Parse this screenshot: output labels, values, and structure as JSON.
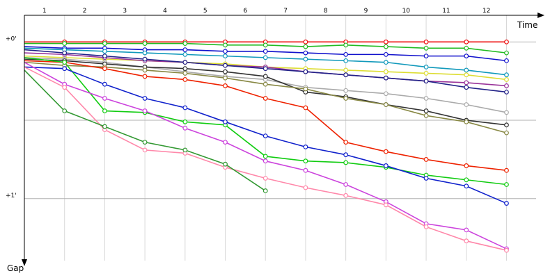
{
  "chart_data": {
    "type": "line",
    "x_title": "Time",
    "y_title": "Gap",
    "lap_labels": [
      "1",
      "2",
      "3",
      "4",
      "5",
      "6",
      "7",
      "8",
      "9",
      "10",
      "11",
      "12"
    ],
    "x": [
      0,
      1,
      2,
      3,
      4,
      5,
      6,
      7,
      8,
      9,
      10,
      11,
      12
    ],
    "xlim": [
      0,
      12.91
    ],
    "x_grid": [
      1,
      2,
      3,
      4,
      5,
      6,
      7,
      8,
      9,
      10,
      11,
      12
    ],
    "ylim": [
      -0.17,
      1.44
    ],
    "yticks": [
      {
        "value": 0,
        "label": "+0'"
      },
      {
        "value": 0.5,
        "label": null
      },
      {
        "value": 1,
        "label": "+1'"
      }
    ],
    "grid": true,
    "series": [
      {
        "color": "#ee1111",
        "values": [
          0,
          0,
          0,
          0,
          0,
          0,
          0,
          0,
          0,
          0,
          0,
          0,
          0
        ]
      },
      {
        "color": "#22bb22",
        "values": [
          0.01,
          0.01,
          0.01,
          0.01,
          0.01,
          0.02,
          0.02,
          0.03,
          0.02,
          0.03,
          0.04,
          0.04,
          0.07
        ]
      },
      {
        "color": "#1111cc",
        "values": [
          0.03,
          0.04,
          0.04,
          0.05,
          0.05,
          0.06,
          0.06,
          0.07,
          0.08,
          0.08,
          0.09,
          0.09,
          0.12
        ]
      },
      {
        "color": "#1199bb",
        "values": [
          0.04,
          0.05,
          0.06,
          0.07,
          0.08,
          0.09,
          0.1,
          0.11,
          0.12,
          0.13,
          0.16,
          0.18,
          0.21
        ]
      },
      {
        "color": "#dddd33",
        "values": [
          0.09,
          0.1,
          0.11,
          0.12,
          0.13,
          0.14,
          0.16,
          0.17,
          0.18,
          0.19,
          0.2,
          0.21,
          0.24
        ]
      },
      {
        "color": "#993399",
        "values": [
          0.07,
          0.08,
          0.1,
          0.12,
          0.13,
          0.15,
          0.16,
          0.19,
          0.21,
          0.23,
          0.25,
          0.26,
          0.28
        ]
      },
      {
        "color": "#222288",
        "values": [
          0.05,
          0.07,
          0.09,
          0.11,
          0.13,
          0.15,
          0.17,
          0.19,
          0.21,
          0.23,
          0.25,
          0.29,
          0.32
        ]
      },
      {
        "color": "#aaaaaa",
        "values": [
          0.1,
          0.11,
          0.13,
          0.16,
          0.19,
          0.22,
          0.24,
          0.29,
          0.31,
          0.33,
          0.36,
          0.4,
          0.45
        ]
      },
      {
        "color": "#333333",
        "values": [
          0.11,
          0.12,
          0.14,
          0.16,
          0.17,
          0.19,
          0.22,
          0.32,
          0.35,
          0.4,
          0.44,
          0.5,
          0.53
        ]
      },
      {
        "color": "#888844",
        "values": [
          0.13,
          0.15,
          0.16,
          0.18,
          0.2,
          0.23,
          0.27,
          0.3,
          0.36,
          0.4,
          0.47,
          0.51,
          0.58
        ]
      },
      {
        "color": "#ee2200",
        "values": [
          0.12,
          0.13,
          0.17,
          0.22,
          0.24,
          0.28,
          0.36,
          0.42,
          0.64,
          0.7,
          0.75,
          0.79,
          0.82
        ]
      },
      {
        "color": "#11cc11",
        "values": [
          0.1,
          0.13,
          0.44,
          0.45,
          0.51,
          0.53,
          0.73,
          0.76,
          0.77,
          0.8,
          0.85,
          0.88,
          0.91
        ]
      },
      {
        "color": "#1122cc",
        "values": [
          0.16,
          0.17,
          0.27,
          0.36,
          0.42,
          0.51,
          0.6,
          0.67,
          0.72,
          0.79,
          0.87,
          0.92,
          1.03
        ]
      },
      {
        "color": "#cc44dd",
        "values": [
          0.13,
          0.27,
          0.36,
          0.44,
          0.55,
          0.64,
          0.76,
          0.82,
          0.91,
          1.02,
          1.16,
          1.2,
          1.32
        ]
      },
      {
        "color": "#ff88aa",
        "values": [
          0.16,
          0.29,
          0.56,
          0.69,
          0.71,
          0.8,
          0.87,
          0.93,
          0.98,
          1.04,
          1.18,
          1.27,
          1.33
        ]
      },
      {
        "color": "#339933",
        "values": [
          0.18,
          0.44,
          0.54,
          0.64,
          0.69,
          0.78,
          0.95,
          null,
          null,
          null,
          null,
          null,
          null
        ]
      }
    ]
  }
}
